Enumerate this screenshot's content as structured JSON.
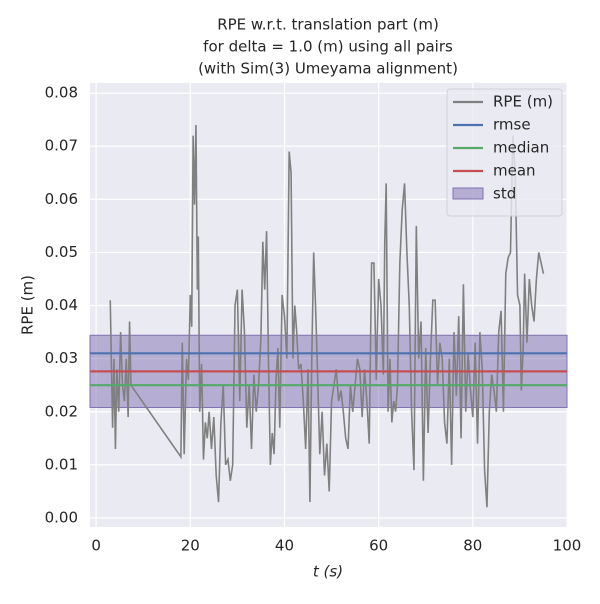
{
  "chart_data": {
    "type": "line",
    "title": [
      "RPE w.r.t. translation part (m)",
      "for delta = 1.0 (m) using all pairs",
      "(with Sim(3) Umeyama alignment)"
    ],
    "x_label": "t (s)",
    "y_label": "RPE (m)",
    "xlim": [
      -1.3,
      100
    ],
    "ylim": [
      -0.0017,
      0.0819
    ],
    "xticks": [
      0,
      20,
      40,
      60,
      80,
      100
    ],
    "yticks": [
      {
        "value": 0,
        "label": "0.00"
      },
      {
        "value": 0.01,
        "label": "0.01"
      },
      {
        "value": 0.02,
        "label": "0.02"
      },
      {
        "value": 0.03,
        "label": "0.03"
      },
      {
        "value": 0.04,
        "label": "0.04"
      },
      {
        "value": 0.05,
        "label": "0.05"
      },
      {
        "value": 0.06,
        "label": "0.06"
      },
      {
        "value": 0.07,
        "label": "0.07"
      },
      {
        "value": 0.08,
        "label": "0.08"
      }
    ],
    "grid": true,
    "legend": "upper right",
    "series": [
      {
        "name": "RPE (m)",
        "color": "#808080",
        "x": [
          3.0,
          3.5,
          3.8,
          4.1,
          4.4,
          4.8,
          5.2,
          5.6,
          6.0,
          6.4,
          6.8,
          7.1,
          7.4,
          18,
          18.3,
          18.7,
          19.2,
          19.6,
          20.0,
          20.3,
          20.6,
          20.9,
          21.2,
          21.5,
          21.7,
          22.0,
          22.4,
          22.8,
          23.2,
          23.6,
          24.0,
          24.5,
          25,
          25.5,
          26,
          26.5,
          27,
          27.5,
          28,
          28.5,
          29,
          29.5,
          30,
          30.5,
          31,
          31.5,
          32,
          32.5,
          33,
          33.5,
          34,
          34.5,
          35,
          35.4,
          35.8,
          36.2,
          36.6,
          37,
          37.4,
          37.8,
          38.2,
          38.6,
          39,
          39.5,
          40,
          40.5,
          41,
          41.4,
          41.8,
          42.2,
          42.6,
          43,
          43.5,
          44,
          44.5,
          45,
          45.4,
          45.8,
          46.2,
          46.6,
          47,
          47.5,
          48,
          48.5,
          49,
          49.5,
          50,
          50.5,
          51,
          51.5,
          52,
          52.5,
          53,
          53.5,
          54,
          54.5,
          55,
          55.5,
          56,
          56.5,
          57,
          57.5,
          58,
          58.5,
          59,
          59.5,
          60,
          60.5,
          61,
          61.3,
          61.6,
          62,
          62.4,
          62.8,
          63.2,
          63.6,
          64,
          64.5,
          65,
          65.5,
          66,
          66.5,
          67,
          67.5,
          68,
          68.5,
          69,
          69.5,
          70,
          70.5,
          71,
          71.5,
          72,
          72.5,
          73,
          73.5,
          74,
          74.5,
          75,
          75.5,
          76,
          76.5,
          77,
          77.5,
          78,
          78.5,
          79,
          79.5,
          80,
          80.5,
          81,
          81.5,
          82,
          82.5,
          83,
          83.5,
          84,
          84.5,
          85,
          85.5,
          86,
          86.5,
          87,
          87.5,
          88,
          88.5,
          89,
          89.5,
          90,
          90.3,
          90.7,
          91,
          91.5,
          92,
          92.5,
          93,
          93.5,
          94,
          95
        ],
        "values": [
          0.041,
          0.017,
          0.03,
          0.013,
          0.028,
          0.02,
          0.035,
          0.025,
          0.022,
          0.03,
          0.019,
          0.037,
          0.025,
          0.0115,
          0.033,
          0.012,
          0.03,
          0.026,
          0.042,
          0.036,
          0.072,
          0.059,
          0.074,
          0.043,
          0.053,
          0.02,
          0.029,
          0.011,
          0.018,
          0.015,
          0.02,
          0.013,
          0.019,
          0.008,
          0.003,
          0.018,
          0.025,
          0.01,
          0.011,
          0.007,
          0.01,
          0.04,
          0.043,
          0.022,
          0.043,
          0.035,
          0.017,
          0.025,
          0.013,
          0.027,
          0.02,
          0.025,
          0.034,
          0.052,
          0.043,
          0.054,
          0.03,
          0.01,
          0.016,
          0.012,
          0.026,
          0.032,
          0.017,
          0.042,
          0.038,
          0.03,
          0.069,
          0.065,
          0.03,
          0.04,
          0.035,
          0.028,
          0.029,
          0.022,
          0.013,
          0.028,
          0.003,
          0.03,
          0.05,
          0.04,
          0.028,
          0.012,
          0.02,
          0.008,
          0.014,
          0.005,
          0.022,
          0.025,
          0.028,
          0.022,
          0.024,
          0.02,
          0.015,
          0.013,
          0.025,
          0.02,
          0.025,
          0.03,
          0.028,
          0.019,
          0.028,
          0.022,
          0.014,
          0.048,
          0.048,
          0.026,
          0.045,
          0.04,
          0.027,
          0.052,
          0.063,
          0.02,
          0.03,
          0.018,
          0.022,
          0.02,
          0.025,
          0.048,
          0.058,
          0.063,
          0.05,
          0.04,
          0.02,
          0.009,
          0.055,
          0.03,
          0.037,
          0.007,
          0.032,
          0.016,
          0.03,
          0.041,
          0.041,
          0.025,
          0.033,
          0.03,
          0.018,
          0.014,
          0.03,
          0.01,
          0.035,
          0.023,
          0.038,
          0.015,
          0.044,
          0.02,
          0.031,
          0.024,
          0.019,
          0.033,
          0.014,
          0.035,
          0.028,
          0.009,
          0.002,
          0.02,
          0.027,
          0.024,
          0.02,
          0.035,
          0.039,
          0.02,
          0.046,
          0.049,
          0.05,
          0.072,
          0.065,
          0.042,
          0.04,
          0.024,
          0.032,
          0.046,
          0.033,
          0.045,
          0.04,
          0.037,
          0.045,
          0.05,
          0.046
        ]
      }
    ],
    "lines": [
      {
        "name": "rmse",
        "color": "#4c72b0",
        "value": 0.031
      },
      {
        "name": "median",
        "color": "#55a868",
        "value": 0.025
      },
      {
        "name": "mean",
        "color": "#c44e52",
        "value": 0.0276
      }
    ],
    "band": {
      "name": "std",
      "color": "#8172b2",
      "low": 0.0208,
      "high": 0.0344
    }
  }
}
